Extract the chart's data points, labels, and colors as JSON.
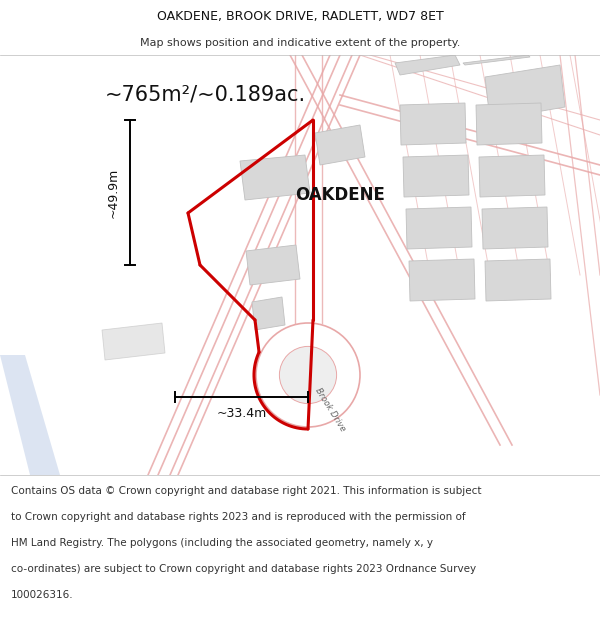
{
  "title_line1": "OAKDENE, BROOK DRIVE, RADLETT, WD7 8ET",
  "title_line2": "Map shows position and indicative extent of the property.",
  "area_text": "~765m²/~0.189ac.",
  "property_label": "OAKDENE",
  "dim_height": "~49.9m",
  "dim_width": "~33.4m",
  "road_label": "Brook Drive",
  "footer_lines": [
    "Contains OS data © Crown copyright and database right 2021. This information is subject",
    "to Crown copyright and database rights 2023 and is reproduced with the permission of",
    "HM Land Registry. The polygons (including the associated geometry, namely x, y",
    "co-ordinates) are subject to Crown copyright and database rights 2023 Ordnance Survey",
    "100026316."
  ],
  "bg_color": "#ffffff",
  "map_bg_color": "#ffffff",
  "title_bg_color": "#f2f2f2",
  "footer_bg_color": "#f2f2f2",
  "red_color": "#cc0000",
  "pink_road": "#f0b0b0",
  "pink_road2": "#e8a8a8",
  "gray_block": "#d8d8d8",
  "gray_block_ec": "#c0c0c0",
  "road_blue": "#c0cfe8",
  "title_fontsize": 9.0,
  "subtitle_fontsize": 8.0,
  "area_fontsize": 15,
  "label_fontsize": 12,
  "dim_fontsize": 9,
  "footer_fontsize": 7.5
}
